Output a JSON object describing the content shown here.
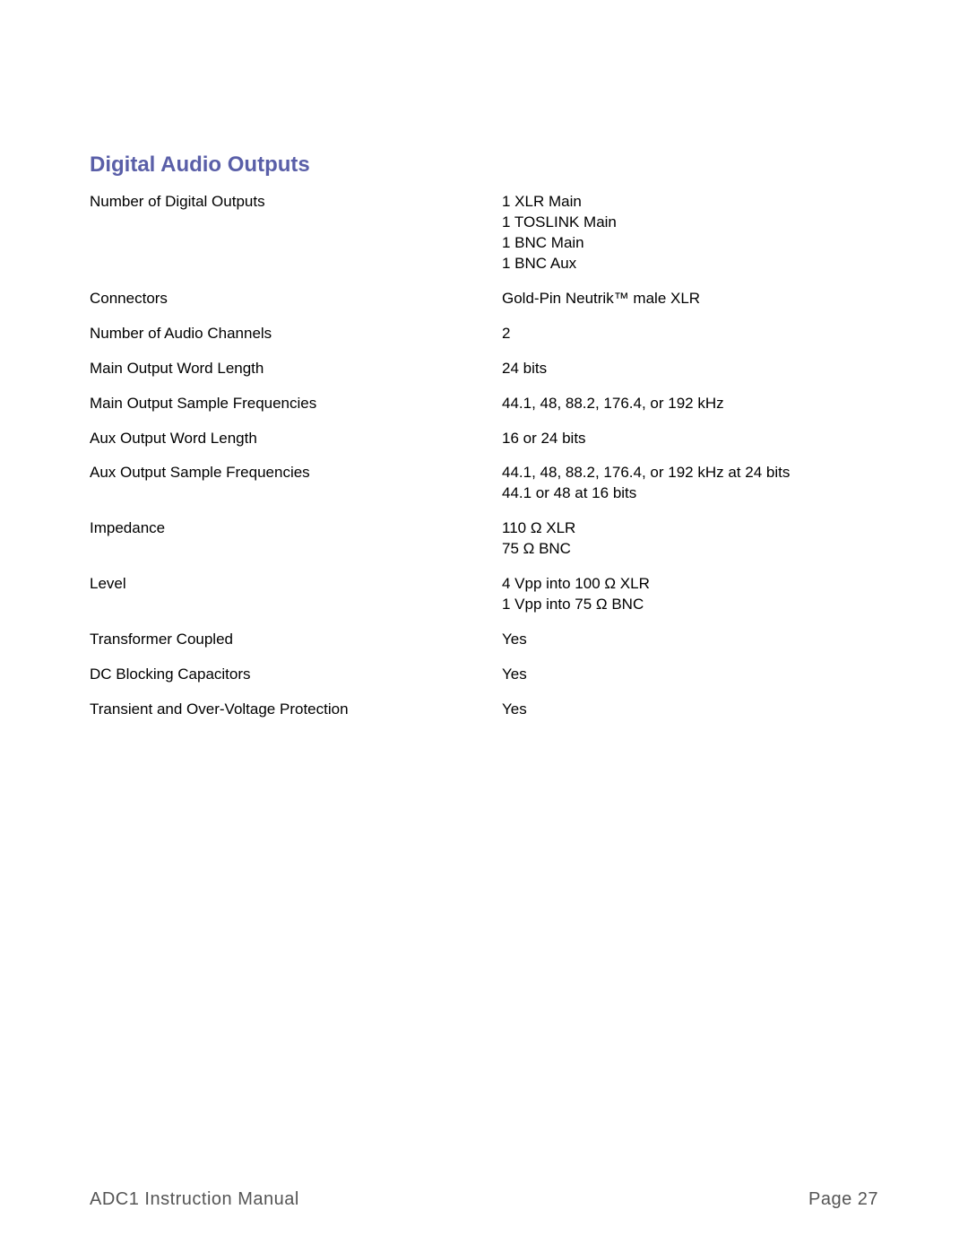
{
  "section_title": "Digital Audio Outputs",
  "specs": [
    {
      "label": "Number of Digital Outputs",
      "value": "1 XLR Main\n1 TOSLINK Main\n1 BNC Main\n1 BNC Aux"
    },
    {
      "label": "Connectors",
      "value": "Gold-Pin Neutrik™ male XLR"
    },
    {
      "label": "Number of Audio Channels",
      "value": "2"
    },
    {
      "label": "Main Output Word Length",
      "value": "24 bits"
    },
    {
      "label": "Main Output Sample Frequencies",
      "value": "44.1, 48, 88.2, 176.4, or 192 kHz"
    },
    {
      "label": "Aux Output Word Length",
      "value": "16 or 24 bits"
    },
    {
      "label": "Aux Output Sample Frequencies",
      "value": "44.1, 48, 88.2, 176.4, or 192 kHz at 24 bits\n44.1 or 48 at 16 bits"
    },
    {
      "label": "Impedance",
      "value": "110 Ω XLR\n75 Ω BNC"
    },
    {
      "label": "Level",
      "value": "4 Vpp into 100 Ω XLR\n1 Vpp into 75 Ω BNC"
    },
    {
      "label": "Transformer Coupled",
      "value": "Yes"
    },
    {
      "label": "DC Blocking Capacitors",
      "value": "Yes"
    },
    {
      "label": "Transient and Over-Voltage Protection",
      "value": "Yes"
    }
  ],
  "footer": {
    "left": "ADC1 Instruction Manual",
    "right": "Page 27"
  },
  "colors": {
    "title": "#5a5fa8",
    "text": "#000000",
    "footer_text": "#555555",
    "background": "#ffffff"
  },
  "typography": {
    "title_fontsize": 24,
    "body_fontsize": 17,
    "footer_fontsize": 20
  }
}
